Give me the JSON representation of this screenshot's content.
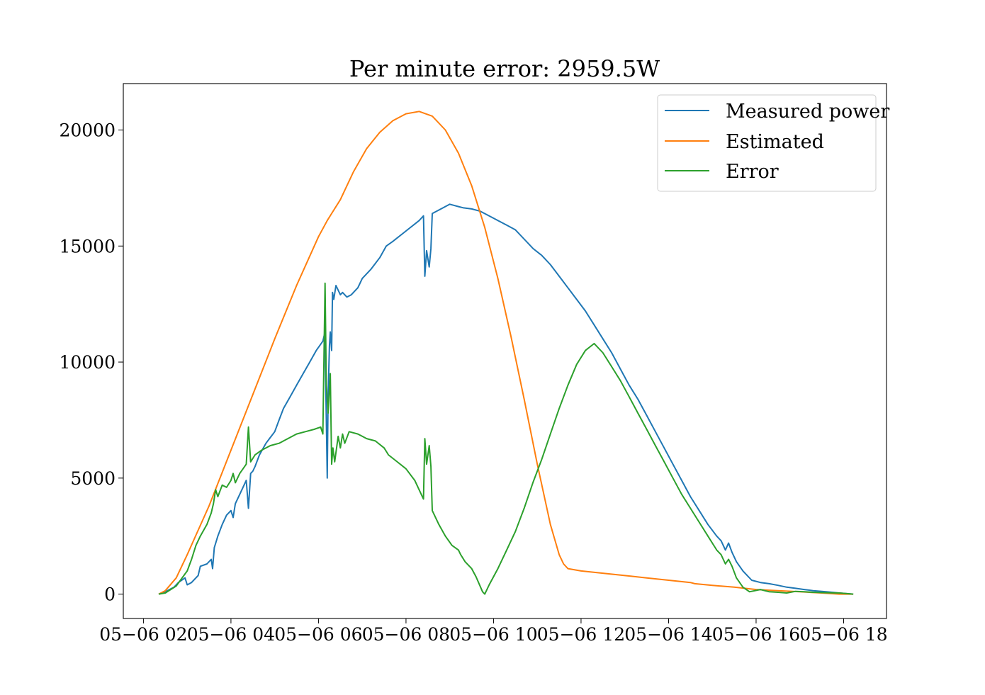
{
  "chart_data": {
    "type": "line",
    "title": "Per minute error: 2959.5W",
    "xlabel": "",
    "ylabel": "",
    "x_tick_labels": [
      "05−06 02",
      "05−06 04",
      "05−06 06",
      "05−06 08",
      "05−06 10",
      "05−06 12",
      "05−06 14",
      "05−06 16",
      "05−06 18"
    ],
    "x_tick_hours": [
      2,
      4,
      6,
      8,
      10,
      12,
      14,
      16,
      18
    ],
    "y_ticks": [
      0,
      5000,
      10000,
      15000,
      20000
    ],
    "y_tick_labels": [
      "0",
      "5000",
      "10000",
      "15000",
      "20000"
    ],
    "xlim_hours": [
      1.54,
      18.98
    ],
    "ylim": [
      -1050,
      22000
    ],
    "legend_position": "top-right",
    "grid": false,
    "x_unit": "hour of 05-06",
    "series": [
      {
        "name": "Measured power",
        "color": "#1f77b4",
        "points": [
          [
            2.35,
            0
          ],
          [
            2.5,
            100
          ],
          [
            2.7,
            300
          ],
          [
            2.8,
            500
          ],
          [
            2.95,
            700
          ],
          [
            3.0,
            400
          ],
          [
            3.1,
            500
          ],
          [
            3.25,
            800
          ],
          [
            3.3,
            1200
          ],
          [
            3.45,
            1300
          ],
          [
            3.55,
            1500
          ],
          [
            3.58,
            1100
          ],
          [
            3.62,
            2000
          ],
          [
            3.7,
            2500
          ],
          [
            3.8,
            3000
          ],
          [
            3.9,
            3400
          ],
          [
            4.0,
            3600
          ],
          [
            4.05,
            3300
          ],
          [
            4.1,
            3900
          ],
          [
            4.2,
            4300
          ],
          [
            4.3,
            4700
          ],
          [
            4.35,
            4900
          ],
          [
            4.4,
            3700
          ],
          [
            4.45,
            5200
          ],
          [
            4.5,
            5300
          ],
          [
            4.55,
            5500
          ],
          [
            4.65,
            6000
          ],
          [
            4.8,
            6500
          ],
          [
            5.0,
            7000
          ],
          [
            5.1,
            7500
          ],
          [
            5.2,
            8000
          ],
          [
            5.35,
            8500
          ],
          [
            5.5,
            9000
          ],
          [
            5.65,
            9500
          ],
          [
            5.8,
            10000
          ],
          [
            5.95,
            10500
          ],
          [
            6.1,
            10900
          ],
          [
            6.15,
            11300
          ],
          [
            6.16,
            9800
          ],
          [
            6.2,
            5000
          ],
          [
            6.22,
            8500
          ],
          [
            6.25,
            10700
          ],
          [
            6.27,
            11300
          ],
          [
            6.3,
            10500
          ],
          [
            6.32,
            13000
          ],
          [
            6.35,
            12700
          ],
          [
            6.4,
            13300
          ],
          [
            6.5,
            12900
          ],
          [
            6.55,
            13000
          ],
          [
            6.65,
            12800
          ],
          [
            6.75,
            12900
          ],
          [
            6.9,
            13200
          ],
          [
            7.0,
            13600
          ],
          [
            7.2,
            14000
          ],
          [
            7.4,
            14500
          ],
          [
            7.55,
            15000
          ],
          [
            7.7,
            15200
          ],
          [
            7.9,
            15500
          ],
          [
            8.1,
            15800
          ],
          [
            8.3,
            16100
          ],
          [
            8.4,
            16300
          ],
          [
            8.43,
            13700
          ],
          [
            8.47,
            14800
          ],
          [
            8.53,
            14100
          ],
          [
            8.57,
            14900
          ],
          [
            8.6,
            16400
          ],
          [
            8.8,
            16600
          ],
          [
            9.0,
            16800
          ],
          [
            9.2,
            16700
          ],
          [
            9.3,
            16650
          ],
          [
            9.5,
            16600
          ],
          [
            9.7,
            16500
          ],
          [
            9.9,
            16300
          ],
          [
            10.1,
            16100
          ],
          [
            10.3,
            15900
          ],
          [
            10.5,
            15700
          ],
          [
            10.7,
            15300
          ],
          [
            10.9,
            14900
          ],
          [
            11.1,
            14600
          ],
          [
            11.3,
            14200
          ],
          [
            11.5,
            13700
          ],
          [
            11.7,
            13200
          ],
          [
            11.9,
            12700
          ],
          [
            12.1,
            12200
          ],
          [
            12.3,
            11600
          ],
          [
            12.5,
            11000
          ],
          [
            12.7,
            10400
          ],
          [
            12.9,
            9700
          ],
          [
            13.1,
            9000
          ],
          [
            13.3,
            8400
          ],
          [
            13.5,
            7700
          ],
          [
            13.7,
            7000
          ],
          [
            13.9,
            6300
          ],
          [
            14.1,
            5600
          ],
          [
            14.3,
            4900
          ],
          [
            14.5,
            4200
          ],
          [
            14.7,
            3600
          ],
          [
            14.9,
            3000
          ],
          [
            15.1,
            2500
          ],
          [
            15.2,
            2300
          ],
          [
            15.3,
            1900
          ],
          [
            15.37,
            2200
          ],
          [
            15.45,
            1800
          ],
          [
            15.55,
            1400
          ],
          [
            15.7,
            1000
          ],
          [
            15.9,
            600
          ],
          [
            16.1,
            500
          ],
          [
            16.3,
            450
          ],
          [
            16.5,
            380
          ],
          [
            16.7,
            300
          ],
          [
            16.9,
            250
          ],
          [
            17.1,
            200
          ],
          [
            17.3,
            150
          ],
          [
            17.6,
            100
          ],
          [
            17.9,
            50
          ],
          [
            18.22,
            0
          ]
        ]
      },
      {
        "name": "Estimated",
        "color": "#ff7f0e",
        "points": [
          [
            2.35,
            0
          ],
          [
            2.5,
            150
          ],
          [
            2.75,
            700
          ],
          [
            3.0,
            1700
          ],
          [
            3.5,
            3800
          ],
          [
            4.0,
            6200
          ],
          [
            4.5,
            8600
          ],
          [
            5.0,
            11000
          ],
          [
            5.5,
            13300
          ],
          [
            6.0,
            15400
          ],
          [
            6.2,
            16100
          ],
          [
            6.3,
            16400
          ],
          [
            6.5,
            17000
          ],
          [
            6.8,
            18200
          ],
          [
            7.1,
            19200
          ],
          [
            7.4,
            19900
          ],
          [
            7.7,
            20400
          ],
          [
            8.0,
            20700
          ],
          [
            8.3,
            20800
          ],
          [
            8.6,
            20600
          ],
          [
            8.9,
            20000
          ],
          [
            9.2,
            19000
          ],
          [
            9.5,
            17600
          ],
          [
            9.8,
            15800
          ],
          [
            10.1,
            13600
          ],
          [
            10.4,
            11100
          ],
          [
            10.7,
            8400
          ],
          [
            11.0,
            5600
          ],
          [
            11.3,
            3000
          ],
          [
            11.5,
            1700
          ],
          [
            11.6,
            1300
          ],
          [
            11.7,
            1100
          ],
          [
            12.0,
            1000
          ],
          [
            12.5,
            900
          ],
          [
            13.0,
            800
          ],
          [
            13.5,
            700
          ],
          [
            14.0,
            600
          ],
          [
            14.5,
            500
          ],
          [
            14.6,
            450
          ],
          [
            15.0,
            380
          ],
          [
            15.5,
            300
          ],
          [
            16.0,
            200
          ],
          [
            16.5,
            150
          ],
          [
            17.0,
            100
          ],
          [
            17.5,
            50
          ],
          [
            17.9,
            0
          ],
          [
            18.22,
            0
          ]
        ]
      },
      {
        "name": "Error",
        "color": "#2ca02c",
        "points": [
          [
            2.35,
            0
          ],
          [
            2.5,
            50
          ],
          [
            2.75,
            350
          ],
          [
            3.0,
            1000
          ],
          [
            3.1,
            1500
          ],
          [
            3.2,
            2100
          ],
          [
            3.3,
            2500
          ],
          [
            3.45,
            3000
          ],
          [
            3.55,
            3500
          ],
          [
            3.6,
            3900
          ],
          [
            3.65,
            4500
          ],
          [
            3.7,
            4200
          ],
          [
            3.8,
            4700
          ],
          [
            3.9,
            4600
          ],
          [
            4.0,
            4900
          ],
          [
            4.05,
            5200
          ],
          [
            4.1,
            4800
          ],
          [
            4.2,
            5200
          ],
          [
            4.35,
            5600
          ],
          [
            4.4,
            7200
          ],
          [
            4.45,
            5700
          ],
          [
            4.55,
            6000
          ],
          [
            4.7,
            6200
          ],
          [
            4.9,
            6400
          ],
          [
            5.1,
            6500
          ],
          [
            5.3,
            6700
          ],
          [
            5.5,
            6900
          ],
          [
            5.7,
            7000
          ],
          [
            5.9,
            7100
          ],
          [
            6.05,
            7200
          ],
          [
            6.1,
            6900
          ],
          [
            6.15,
            13400
          ],
          [
            6.18,
            9000
          ],
          [
            6.22,
            7800
          ],
          [
            6.27,
            9500
          ],
          [
            6.3,
            5600
          ],
          [
            6.33,
            6300
          ],
          [
            6.37,
            5700
          ],
          [
            6.45,
            6800
          ],
          [
            6.5,
            6300
          ],
          [
            6.55,
            6900
          ],
          [
            6.6,
            6500
          ],
          [
            6.7,
            7000
          ],
          [
            6.9,
            6900
          ],
          [
            7.1,
            6700
          ],
          [
            7.3,
            6600
          ],
          [
            7.5,
            6300
          ],
          [
            7.6,
            6000
          ],
          [
            7.8,
            5700
          ],
          [
            8.0,
            5400
          ],
          [
            8.2,
            4900
          ],
          [
            8.35,
            4300
          ],
          [
            8.4,
            4100
          ],
          [
            8.43,
            6700
          ],
          [
            8.47,
            5600
          ],
          [
            8.53,
            6400
          ],
          [
            8.57,
            5500
          ],
          [
            8.6,
            3600
          ],
          [
            8.75,
            3000
          ],
          [
            8.9,
            2500
          ],
          [
            9.05,
            2100
          ],
          [
            9.2,
            1900
          ],
          [
            9.25,
            1700
          ],
          [
            9.35,
            1400
          ],
          [
            9.5,
            1100
          ],
          [
            9.6,
            750
          ],
          [
            9.75,
            100
          ],
          [
            9.8,
            0
          ],
          [
            9.9,
            400
          ],
          [
            10.1,
            1100
          ],
          [
            10.3,
            1900
          ],
          [
            10.5,
            2700
          ],
          [
            10.7,
            3700
          ],
          [
            10.9,
            4800
          ],
          [
            11.1,
            5800
          ],
          [
            11.3,
            6900
          ],
          [
            11.5,
            8000
          ],
          [
            11.7,
            9000
          ],
          [
            11.9,
            9900
          ],
          [
            12.1,
            10500
          ],
          [
            12.3,
            10800
          ],
          [
            12.5,
            10400
          ],
          [
            12.7,
            9800
          ],
          [
            12.9,
            9200
          ],
          [
            13.1,
            8500
          ],
          [
            13.3,
            7800
          ],
          [
            13.5,
            7100
          ],
          [
            13.7,
            6400
          ],
          [
            13.9,
            5700
          ],
          [
            14.1,
            5000
          ],
          [
            14.3,
            4300
          ],
          [
            14.5,
            3700
          ],
          [
            14.7,
            3100
          ],
          [
            14.9,
            2500
          ],
          [
            15.1,
            1900
          ],
          [
            15.2,
            1700
          ],
          [
            15.3,
            1300
          ],
          [
            15.37,
            1500
          ],
          [
            15.45,
            1200
          ],
          [
            15.55,
            700
          ],
          [
            15.7,
            300
          ],
          [
            15.85,
            100
          ],
          [
            16.1,
            200
          ],
          [
            16.3,
            100
          ],
          [
            16.5,
            80
          ],
          [
            16.7,
            50
          ],
          [
            16.9,
            120
          ],
          [
            17.1,
            100
          ],
          [
            17.3,
            80
          ],
          [
            17.6,
            60
          ],
          [
            17.9,
            50
          ],
          [
            18.22,
            0
          ]
        ]
      }
    ]
  }
}
